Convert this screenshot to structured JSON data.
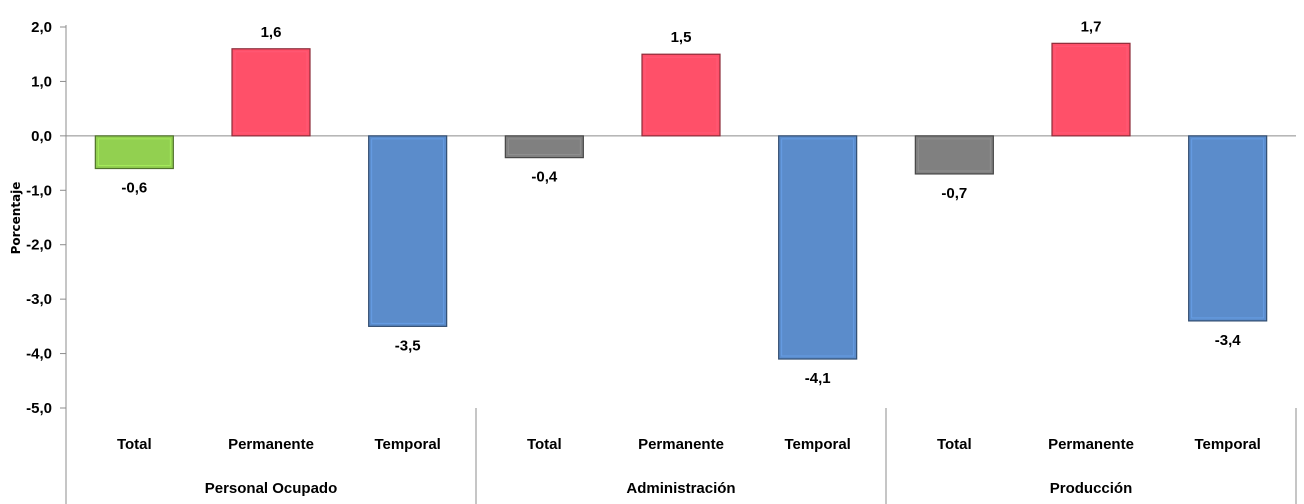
{
  "chart_data": {
    "type": "bar",
    "ylabel": "Porcentaje",
    "ylim": [
      -5,
      2
    ],
    "yticks": [
      "2,0",
      "1,0",
      "0,0",
      "-1,0",
      "-2,0",
      "-3,0",
      "-4,0",
      "-5,0"
    ],
    "groups": [
      {
        "name": "Personal Ocupado",
        "bars": [
          {
            "category": "Total",
            "value": -0.6,
            "label": "-0,6",
            "color": "#92d050"
          },
          {
            "category": "Permanente",
            "value": 1.6,
            "label": "1,6",
            "color": "#ff5069"
          },
          {
            "category": "Temporal",
            "value": -3.5,
            "label": "-3,5",
            "color": "#5b8ccb"
          }
        ]
      },
      {
        "name": "Administración",
        "bars": [
          {
            "category": "Total",
            "value": -0.4,
            "label": "-0,4",
            "color": "#808080"
          },
          {
            "category": "Permanente",
            "value": 1.5,
            "label": "1,5",
            "color": "#ff5069"
          },
          {
            "category": "Temporal",
            "value": -4.1,
            "label": "-4,1",
            "color": "#5b8ccb"
          }
        ]
      },
      {
        "name": "Producción",
        "bars": [
          {
            "category": "Total",
            "value": -0.7,
            "label": "-0,7",
            "color": "#808080"
          },
          {
            "category": "Permanente",
            "value": 1.7,
            "label": "1,7",
            "color": "#ff5069"
          },
          {
            "category": "Temporal",
            "value": -3.4,
            "label": "-3,4",
            "color": "#5b8ccb"
          }
        ]
      }
    ]
  }
}
